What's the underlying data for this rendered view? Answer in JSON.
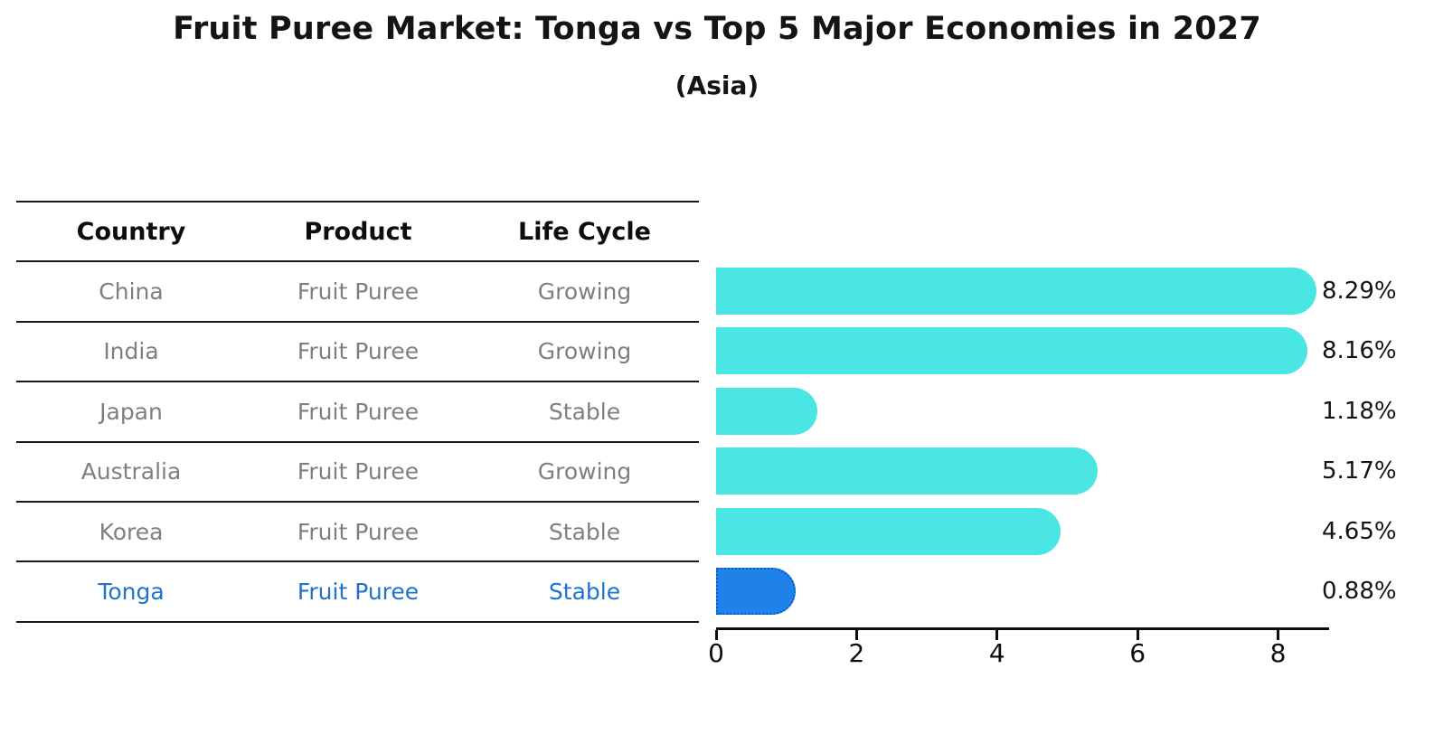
{
  "title": "Fruit Puree Market: Tonga vs Top 5 Major Economies in 2027",
  "subtitle": "(Asia)",
  "table": {
    "columns": [
      "Country",
      "Product",
      "Life Cycle"
    ],
    "rows": [
      {
        "country": "China",
        "product": "Fruit Puree",
        "life_cycle": "Growing"
      },
      {
        "country": "India",
        "product": "Fruit Puree",
        "life_cycle": "Growing"
      },
      {
        "country": "Japan",
        "product": "Fruit Puree",
        "life_cycle": "Stable"
      },
      {
        "country": "Australia",
        "product": "Fruit Puree",
        "life_cycle": "Growing"
      },
      {
        "country": "Korea",
        "product": "Fruit Puree",
        "life_cycle": "Stable"
      },
      {
        "country": "Tonga",
        "product": "Fruit Puree",
        "life_cycle": "Stable"
      }
    ]
  },
  "chart_data": {
    "type": "bar",
    "orientation": "horizontal",
    "title": "Fruit Puree Market: Tonga vs Top 5 Major Economies in 2027",
    "subtitle": "(Asia)",
    "categories": [
      "China",
      "India",
      "Japan",
      "Australia",
      "Korea",
      "Tonga"
    ],
    "values": [
      8.29,
      8.16,
      1.18,
      5.17,
      4.65,
      0.88
    ],
    "value_labels": [
      "8.29%",
      "8.16%",
      "1.18%",
      "5.17%",
      "4.65%",
      "0.88%"
    ],
    "xlim": [
      0,
      8.7
    ],
    "xticks": [
      0,
      2,
      4,
      6,
      8
    ],
    "grid": false,
    "legend": "none",
    "bar_color": "#4ae6e3",
    "highlight_bar_color": "#1e82e8",
    "highlight_text_color": "#1e73cf",
    "highlight_index": 5
  }
}
